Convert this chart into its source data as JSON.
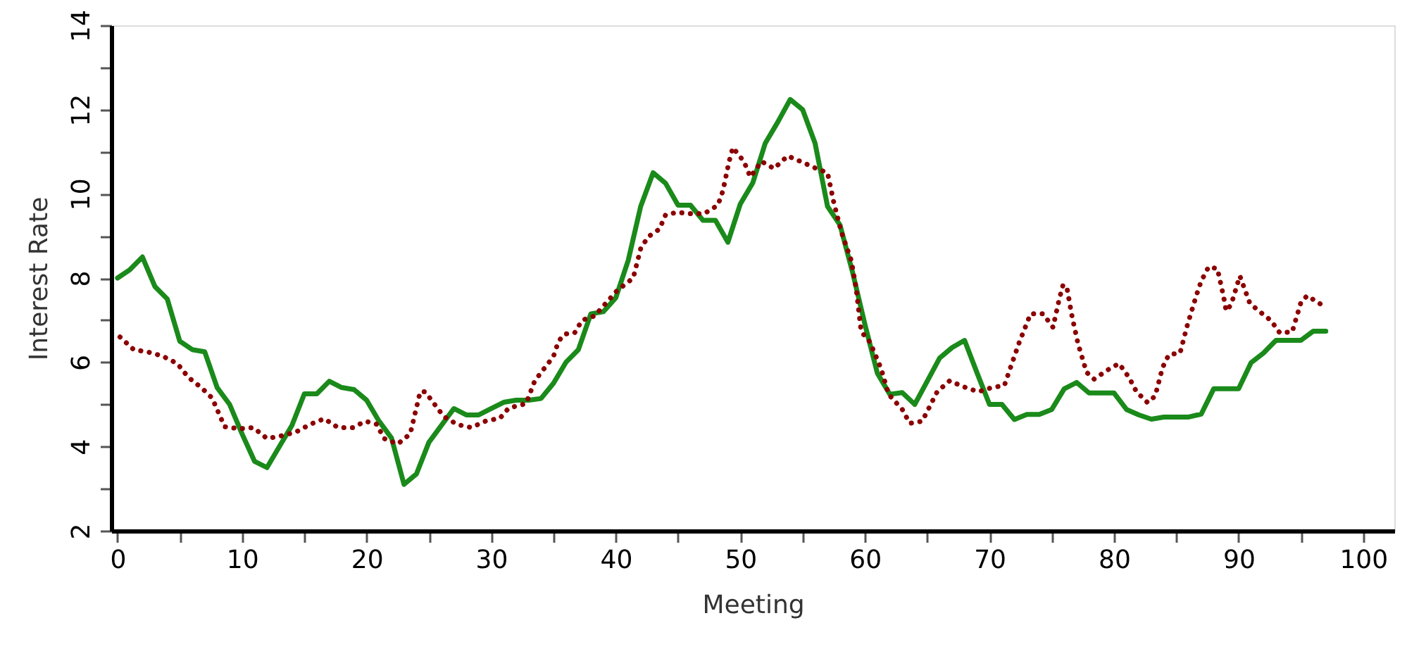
{
  "chart_data": {
    "type": "line",
    "xlabel": "Meeting",
    "ylabel": "Interest Rate",
    "xlim": [
      -0.5,
      102.5
    ],
    "ylim": [
      2,
      14
    ],
    "xticks": [
      0,
      {
        "value": 5,
        "label": null
      },
      10,
      {
        "value": 15,
        "label": null
      },
      20,
      {
        "value": 25,
        "label": null
      },
      30,
      {
        "value": 35,
        "label": null
      },
      40,
      {
        "value": 45,
        "label": null
      },
      50,
      {
        "value": 55,
        "label": null
      },
      60,
      {
        "value": 65,
        "label": null
      },
      70,
      {
        "value": 75,
        "label": null
      },
      80,
      {
        "value": 85,
        "label": null
      },
      90,
      {
        "value": 95,
        "label": null
      },
      100
    ],
    "yticks": [
      2,
      {
        "value": 3,
        "label": null
      },
      4,
      {
        "value": 5,
        "label": null
      },
      6,
      {
        "value": 7,
        "label": null
      },
      8,
      {
        "value": 9,
        "label": null
      },
      10,
      {
        "value": 11,
        "label": null
      },
      12,
      {
        "value": 13,
        "label": null
      },
      14
    ],
    "grid": false,
    "marker": "none",
    "series": [
      {
        "color": "#1a8a1a",
        "line_style": "solid",
        "x": [
          0,
          1,
          2,
          3,
          4,
          5,
          6,
          7,
          8,
          9,
          10,
          11,
          12,
          13,
          14,
          15,
          16,
          17,
          18,
          19,
          20,
          21,
          22,
          23,
          24,
          25,
          26,
          27,
          28,
          29,
          30,
          31,
          32,
          33,
          34,
          35,
          36,
          37,
          38,
          39,
          40,
          41,
          42,
          43,
          44,
          45,
          46,
          47,
          48,
          49,
          50,
          51,
          52,
          53,
          54,
          55,
          56,
          57,
          58,
          59,
          60,
          61,
          62,
          63,
          64,
          65,
          66,
          67,
          68,
          69,
          70,
          71,
          72,
          73,
          74,
          75,
          76,
          77,
          78,
          79,
          80,
          81,
          82,
          83,
          84,
          85,
          86,
          87,
          88,
          89,
          90,
          91,
          92,
          93,
          94,
          95,
          96,
          97
        ],
        "values": [
          8.0,
          8.2,
          8.5,
          7.8,
          7.5,
          6.5,
          6.3,
          6.25,
          5.4,
          5.0,
          4.3,
          3.65,
          3.5,
          4.0,
          4.5,
          5.25,
          5.25,
          5.55,
          5.4,
          5.35,
          5.1,
          4.6,
          4.2,
          3.1,
          3.35,
          4.1,
          4.5,
          4.9,
          4.75,
          4.75,
          4.9,
          5.05,
          5.1,
          5.1,
          5.14,
          5.5,
          6.0,
          6.3,
          7.15,
          7.2,
          7.53,
          8.42,
          9.7,
          10.5,
          10.25,
          9.73,
          9.73,
          9.37,
          9.37,
          8.85,
          9.76,
          10.26,
          11.2,
          11.7,
          12.24,
          12.0,
          11.2,
          9.7,
          9.26,
          8.15,
          6.9,
          5.74,
          5.24,
          5.28,
          5.0,
          5.55,
          6.1,
          6.35,
          6.52,
          5.75,
          5.0,
          5.0,
          4.64,
          4.76,
          4.76,
          4.88,
          5.37,
          5.52,
          5.27,
          5.27,
          5.27,
          4.88,
          4.75,
          4.65,
          4.7,
          4.7,
          4.7,
          4.77,
          5.37,
          5.37,
          5.37,
          5.99,
          6.22,
          6.52,
          6.52,
          6.52,
          6.74,
          6.74
        ]
      },
      {
        "color": "#8b0000",
        "line_style": "dotted",
        "x": [
          0.2,
          1.3,
          2.5,
          3.6,
          4.8,
          5.7,
          6.8,
          7.6,
          8.1,
          8.6,
          9.8,
          10.9,
          12,
          13.1,
          14.3,
          15.5,
          16.6,
          17.7,
          18.9,
          19.9,
          20.8,
          21.4,
          22.5,
          23.5,
          24.3,
          24.7,
          26.2,
          27.3,
          28.4,
          29.6,
          30.7,
          31.4,
          32.8,
          33.5,
          35,
          35.4,
          35.9,
          36.7,
          37.3,
          38.3,
          39.2,
          40.1,
          41.4,
          42,
          42.6,
          43.5,
          44,
          44.9,
          46,
          47.1,
          48.2,
          48.6,
          49.1,
          49.4,
          50.3,
          50.8,
          51.7,
          52.7,
          53.8,
          54.9,
          56.1,
          57,
          57.5,
          58.1,
          58.9,
          59.3,
          59.7,
          60.4,
          61.3,
          61.9,
          63,
          63.6,
          64.6,
          65.2,
          65.8,
          66.8,
          67.9,
          69.1,
          70.2,
          71.2,
          71.6,
          72.4,
          73.3,
          74.3,
          75.1,
          75.6,
          75.9,
          76.2,
          76.6,
          77.1,
          77.8,
          78.4,
          79.5,
          80.4,
          81.2,
          81.8,
          82.7,
          83.3,
          83.9,
          84.4,
          85.3,
          85.9,
          86.6,
          87,
          87.6,
          88.3,
          88.8,
          89,
          89.4,
          90.1,
          90.9,
          91.7,
          92.6,
          93.3,
          94.3,
          95,
          95.5,
          96.8
        ],
        "values": [
          6.6,
          6.3,
          6.24,
          6.15,
          5.97,
          5.64,
          5.38,
          5.15,
          4.81,
          4.47,
          4.42,
          4.45,
          4.19,
          4.25,
          4.34,
          4.53,
          4.66,
          4.45,
          4.45,
          4.6,
          4.53,
          4.19,
          4.06,
          4.3,
          5.3,
          5.3,
          4.71,
          4.52,
          4.45,
          4.61,
          4.67,
          4.91,
          5.02,
          5.56,
          6.14,
          6.5,
          6.67,
          6.7,
          7.0,
          7.1,
          7.4,
          7.7,
          8.0,
          8.7,
          8.98,
          9.16,
          9.5,
          9.56,
          9.53,
          9.53,
          9.73,
          10.07,
          10.77,
          11.1,
          10.76,
          10.4,
          10.77,
          10.6,
          10.9,
          10.76,
          10.6,
          10.5,
          9.8,
          9.1,
          8.42,
          7.75,
          6.73,
          6.48,
          5.85,
          5.24,
          4.88,
          4.55,
          4.6,
          4.95,
          5.3,
          5.56,
          5.42,
          5.3,
          5.4,
          5.45,
          5.8,
          6.48,
          7.15,
          7.15,
          6.83,
          7.5,
          7.83,
          7.8,
          7.13,
          6.45,
          5.76,
          5.6,
          5.82,
          5.97,
          5.64,
          5.3,
          5.04,
          5.2,
          5.88,
          6.18,
          6.22,
          6.9,
          7.58,
          7.93,
          8.27,
          8.22,
          7.55,
          7.22,
          7.37,
          8.05,
          7.4,
          7.2,
          6.99,
          6.7,
          6.72,
          7.42,
          7.58,
          7.34
        ]
      }
    ]
  }
}
